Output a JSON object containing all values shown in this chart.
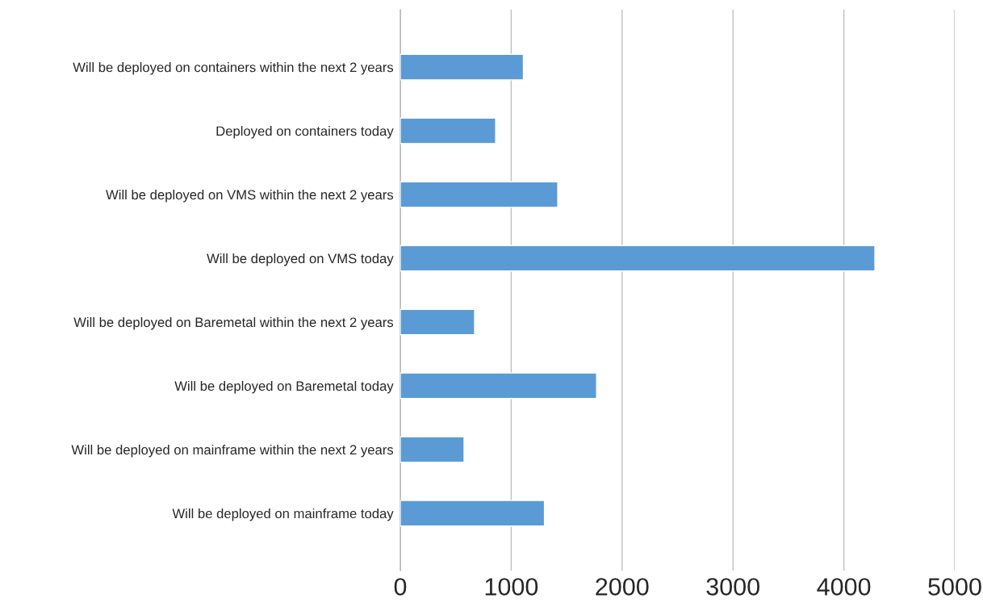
{
  "chart_data": {
    "type": "bar",
    "orientation": "horizontal",
    "categories": [
      "Will be deployed on containers within the next 2 years",
      "Deployed on containers today",
      "Will be deployed on VMS within the next 2 years",
      "Will be deployed on VMS today",
      "Will be deployed on Baremetal within the next 2 years",
      "Will be deployed on Baremetal today",
      "Will be deployed on mainframe within the next 2 years",
      "Will be deployed on mainframe today"
    ],
    "values": [
      1110,
      860,
      1420,
      4280,
      670,
      1770,
      575,
      1300
    ],
    "color": "#5b9bd5",
    "xlim": [
      0,
      5000
    ],
    "xticks": [
      0,
      1000,
      2000,
      3000,
      4000,
      5000
    ],
    "grid": "x",
    "legend": false
  }
}
